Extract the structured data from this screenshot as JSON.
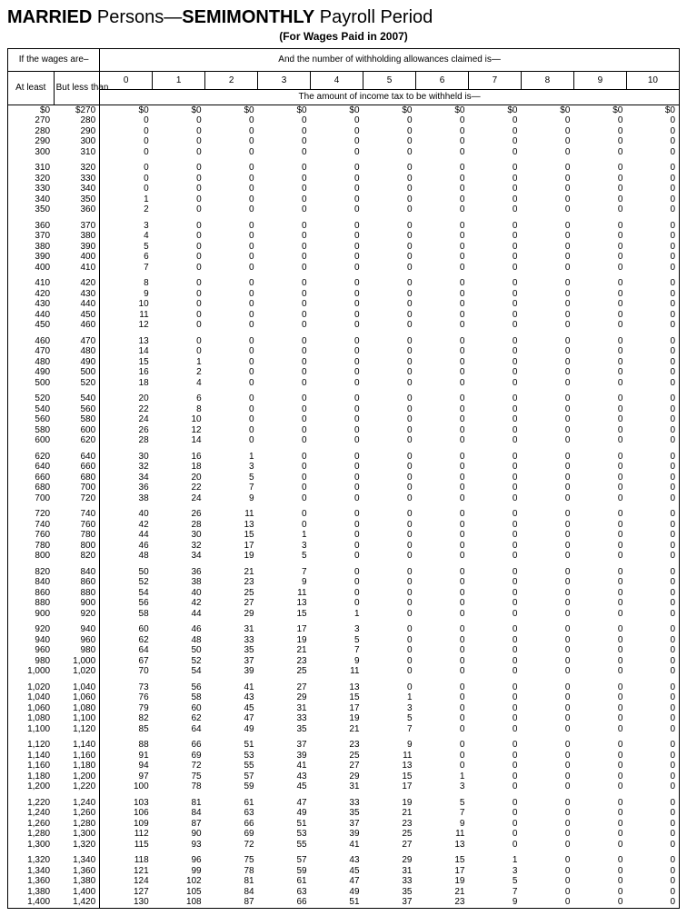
{
  "title_parts": {
    "p1": "MARRIED",
    "p2": " Persons—",
    "p3": "SEMIMONTHLY",
    "p4": " Payroll Period"
  },
  "subtitle": "(For Wages Paid in 2007)",
  "headers": {
    "wages_label": "If the wages are–",
    "allowances_label": "And the number of withholding allowances claimed is—",
    "at_least": "At least",
    "but_less": "But less than",
    "amount_label": "The amount of income tax to be withheld is—",
    "allowance_cols": [
      "0",
      "1",
      "2",
      "3",
      "4",
      "5",
      "6",
      "7",
      "8",
      "9",
      "10"
    ]
  },
  "groups": [
    [
      [
        "$0",
        "$270",
        "$0",
        "$0",
        "$0",
        "$0",
        "$0",
        "$0",
        "$0",
        "$0",
        "$0",
        "$0",
        "$0"
      ],
      [
        "270",
        "280",
        "0",
        "0",
        "0",
        "0",
        "0",
        "0",
        "0",
        "0",
        "0",
        "0",
        "0"
      ],
      [
        "280",
        "290",
        "0",
        "0",
        "0",
        "0",
        "0",
        "0",
        "0",
        "0",
        "0",
        "0",
        "0"
      ],
      [
        "290",
        "300",
        "0",
        "0",
        "0",
        "0",
        "0",
        "0",
        "0",
        "0",
        "0",
        "0",
        "0"
      ],
      [
        "300",
        "310",
        "0",
        "0",
        "0",
        "0",
        "0",
        "0",
        "0",
        "0",
        "0",
        "0",
        "0"
      ]
    ],
    [
      [
        "310",
        "320",
        "0",
        "0",
        "0",
        "0",
        "0",
        "0",
        "0",
        "0",
        "0",
        "0",
        "0"
      ],
      [
        "320",
        "330",
        "0",
        "0",
        "0",
        "0",
        "0",
        "0",
        "0",
        "0",
        "0",
        "0",
        "0"
      ],
      [
        "330",
        "340",
        "0",
        "0",
        "0",
        "0",
        "0",
        "0",
        "0",
        "0",
        "0",
        "0",
        "0"
      ],
      [
        "340",
        "350",
        "1",
        "0",
        "0",
        "0",
        "0",
        "0",
        "0",
        "0",
        "0",
        "0",
        "0"
      ],
      [
        "350",
        "360",
        "2",
        "0",
        "0",
        "0",
        "0",
        "0",
        "0",
        "0",
        "0",
        "0",
        "0"
      ]
    ],
    [
      [
        "360",
        "370",
        "3",
        "0",
        "0",
        "0",
        "0",
        "0",
        "0",
        "0",
        "0",
        "0",
        "0"
      ],
      [
        "370",
        "380",
        "4",
        "0",
        "0",
        "0",
        "0",
        "0",
        "0",
        "0",
        "0",
        "0",
        "0"
      ],
      [
        "380",
        "390",
        "5",
        "0",
        "0",
        "0",
        "0",
        "0",
        "0",
        "0",
        "0",
        "0",
        "0"
      ],
      [
        "390",
        "400",
        "6",
        "0",
        "0",
        "0",
        "0",
        "0",
        "0",
        "0",
        "0",
        "0",
        "0"
      ],
      [
        "400",
        "410",
        "7",
        "0",
        "0",
        "0",
        "0",
        "0",
        "0",
        "0",
        "0",
        "0",
        "0"
      ]
    ],
    [
      [
        "410",
        "420",
        "8",
        "0",
        "0",
        "0",
        "0",
        "0",
        "0",
        "0",
        "0",
        "0",
        "0"
      ],
      [
        "420",
        "430",
        "9",
        "0",
        "0",
        "0",
        "0",
        "0",
        "0",
        "0",
        "0",
        "0",
        "0"
      ],
      [
        "430",
        "440",
        "10",
        "0",
        "0",
        "0",
        "0",
        "0",
        "0",
        "0",
        "0",
        "0",
        "0"
      ],
      [
        "440",
        "450",
        "11",
        "0",
        "0",
        "0",
        "0",
        "0",
        "0",
        "0",
        "0",
        "0",
        "0"
      ],
      [
        "450",
        "460",
        "12",
        "0",
        "0",
        "0",
        "0",
        "0",
        "0",
        "0",
        "0",
        "0",
        "0"
      ]
    ],
    [
      [
        "460",
        "470",
        "13",
        "0",
        "0",
        "0",
        "0",
        "0",
        "0",
        "0",
        "0",
        "0",
        "0"
      ],
      [
        "470",
        "480",
        "14",
        "0",
        "0",
        "0",
        "0",
        "0",
        "0",
        "0",
        "0",
        "0",
        "0"
      ],
      [
        "480",
        "490",
        "15",
        "1",
        "0",
        "0",
        "0",
        "0",
        "0",
        "0",
        "0",
        "0",
        "0"
      ],
      [
        "490",
        "500",
        "16",
        "2",
        "0",
        "0",
        "0",
        "0",
        "0",
        "0",
        "0",
        "0",
        "0"
      ],
      [
        "500",
        "520",
        "18",
        "4",
        "0",
        "0",
        "0",
        "0",
        "0",
        "0",
        "0",
        "0",
        "0"
      ]
    ],
    [
      [
        "520",
        "540",
        "20",
        "6",
        "0",
        "0",
        "0",
        "0",
        "0",
        "0",
        "0",
        "0",
        "0"
      ],
      [
        "540",
        "560",
        "22",
        "8",
        "0",
        "0",
        "0",
        "0",
        "0",
        "0",
        "0",
        "0",
        "0"
      ],
      [
        "560",
        "580",
        "24",
        "10",
        "0",
        "0",
        "0",
        "0",
        "0",
        "0",
        "0",
        "0",
        "0"
      ],
      [
        "580",
        "600",
        "26",
        "12",
        "0",
        "0",
        "0",
        "0",
        "0",
        "0",
        "0",
        "0",
        "0"
      ],
      [
        "600",
        "620",
        "28",
        "14",
        "0",
        "0",
        "0",
        "0",
        "0",
        "0",
        "0",
        "0",
        "0"
      ]
    ],
    [
      [
        "620",
        "640",
        "30",
        "16",
        "1",
        "0",
        "0",
        "0",
        "0",
        "0",
        "0",
        "0",
        "0"
      ],
      [
        "640",
        "660",
        "32",
        "18",
        "3",
        "0",
        "0",
        "0",
        "0",
        "0",
        "0",
        "0",
        "0"
      ],
      [
        "660",
        "680",
        "34",
        "20",
        "5",
        "0",
        "0",
        "0",
        "0",
        "0",
        "0",
        "0",
        "0"
      ],
      [
        "680",
        "700",
        "36",
        "22",
        "7",
        "0",
        "0",
        "0",
        "0",
        "0",
        "0",
        "0",
        "0"
      ],
      [
        "700",
        "720",
        "38",
        "24",
        "9",
        "0",
        "0",
        "0",
        "0",
        "0",
        "0",
        "0",
        "0"
      ]
    ],
    [
      [
        "720",
        "740",
        "40",
        "26",
        "11",
        "0",
        "0",
        "0",
        "0",
        "0",
        "0",
        "0",
        "0"
      ],
      [
        "740",
        "760",
        "42",
        "28",
        "13",
        "0",
        "0",
        "0",
        "0",
        "0",
        "0",
        "0",
        "0"
      ],
      [
        "760",
        "780",
        "44",
        "30",
        "15",
        "1",
        "0",
        "0",
        "0",
        "0",
        "0",
        "0",
        "0"
      ],
      [
        "780",
        "800",
        "46",
        "32",
        "17",
        "3",
        "0",
        "0",
        "0",
        "0",
        "0",
        "0",
        "0"
      ],
      [
        "800",
        "820",
        "48",
        "34",
        "19",
        "5",
        "0",
        "0",
        "0",
        "0",
        "0",
        "0",
        "0"
      ]
    ],
    [
      [
        "820",
        "840",
        "50",
        "36",
        "21",
        "7",
        "0",
        "0",
        "0",
        "0",
        "0",
        "0",
        "0"
      ],
      [
        "840",
        "860",
        "52",
        "38",
        "23",
        "9",
        "0",
        "0",
        "0",
        "0",
        "0",
        "0",
        "0"
      ],
      [
        "860",
        "880",
        "54",
        "40",
        "25",
        "11",
        "0",
        "0",
        "0",
        "0",
        "0",
        "0",
        "0"
      ],
      [
        "880",
        "900",
        "56",
        "42",
        "27",
        "13",
        "0",
        "0",
        "0",
        "0",
        "0",
        "0",
        "0"
      ],
      [
        "900",
        "920",
        "58",
        "44",
        "29",
        "15",
        "1",
        "0",
        "0",
        "0",
        "0",
        "0",
        "0"
      ]
    ],
    [
      [
        "920",
        "940",
        "60",
        "46",
        "31",
        "17",
        "3",
        "0",
        "0",
        "0",
        "0",
        "0",
        "0"
      ],
      [
        "940",
        "960",
        "62",
        "48",
        "33",
        "19",
        "5",
        "0",
        "0",
        "0",
        "0",
        "0",
        "0"
      ],
      [
        "960",
        "980",
        "64",
        "50",
        "35",
        "21",
        "7",
        "0",
        "0",
        "0",
        "0",
        "0",
        "0"
      ],
      [
        "980",
        "1,000",
        "67",
        "52",
        "37",
        "23",
        "9",
        "0",
        "0",
        "0",
        "0",
        "0",
        "0"
      ],
      [
        "1,000",
        "1,020",
        "70",
        "54",
        "39",
        "25",
        "11",
        "0",
        "0",
        "0",
        "0",
        "0",
        "0"
      ]
    ],
    [
      [
        "1,020",
        "1,040",
        "73",
        "56",
        "41",
        "27",
        "13",
        "0",
        "0",
        "0",
        "0",
        "0",
        "0"
      ],
      [
        "1,040",
        "1,060",
        "76",
        "58",
        "43",
        "29",
        "15",
        "1",
        "0",
        "0",
        "0",
        "0",
        "0"
      ],
      [
        "1,060",
        "1,080",
        "79",
        "60",
        "45",
        "31",
        "17",
        "3",
        "0",
        "0",
        "0",
        "0",
        "0"
      ],
      [
        "1,080",
        "1,100",
        "82",
        "62",
        "47",
        "33",
        "19",
        "5",
        "0",
        "0",
        "0",
        "0",
        "0"
      ],
      [
        "1,100",
        "1,120",
        "85",
        "64",
        "49",
        "35",
        "21",
        "7",
        "0",
        "0",
        "0",
        "0",
        "0"
      ]
    ],
    [
      [
        "1,120",
        "1,140",
        "88",
        "66",
        "51",
        "37",
        "23",
        "9",
        "0",
        "0",
        "0",
        "0",
        "0"
      ],
      [
        "1,140",
        "1,160",
        "91",
        "69",
        "53",
        "39",
        "25",
        "11",
        "0",
        "0",
        "0",
        "0",
        "0"
      ],
      [
        "1,160",
        "1,180",
        "94",
        "72",
        "55",
        "41",
        "27",
        "13",
        "0",
        "0",
        "0",
        "0",
        "0"
      ],
      [
        "1,180",
        "1,200",
        "97",
        "75",
        "57",
        "43",
        "29",
        "15",
        "1",
        "0",
        "0",
        "0",
        "0"
      ],
      [
        "1,200",
        "1,220",
        "100",
        "78",
        "59",
        "45",
        "31",
        "17",
        "3",
        "0",
        "0",
        "0",
        "0"
      ]
    ],
    [
      [
        "1,220",
        "1,240",
        "103",
        "81",
        "61",
        "47",
        "33",
        "19",
        "5",
        "0",
        "0",
        "0",
        "0"
      ],
      [
        "1,240",
        "1,260",
        "106",
        "84",
        "63",
        "49",
        "35",
        "21",
        "7",
        "0",
        "0",
        "0",
        "0"
      ],
      [
        "1,260",
        "1,280",
        "109",
        "87",
        "66",
        "51",
        "37",
        "23",
        "9",
        "0",
        "0",
        "0",
        "0"
      ],
      [
        "1,280",
        "1,300",
        "112",
        "90",
        "69",
        "53",
        "39",
        "25",
        "11",
        "0",
        "0",
        "0",
        "0"
      ],
      [
        "1,300",
        "1,320",
        "115",
        "93",
        "72",
        "55",
        "41",
        "27",
        "13",
        "0",
        "0",
        "0",
        "0"
      ]
    ],
    [
      [
        "1,320",
        "1,340",
        "118",
        "96",
        "75",
        "57",
        "43",
        "29",
        "15",
        "1",
        "0",
        "0",
        "0"
      ],
      [
        "1,340",
        "1,360",
        "121",
        "99",
        "78",
        "59",
        "45",
        "31",
        "17",
        "3",
        "0",
        "0",
        "0"
      ],
      [
        "1,360",
        "1,380",
        "124",
        "102",
        "81",
        "61",
        "47",
        "33",
        "19",
        "5",
        "0",
        "0",
        "0"
      ],
      [
        "1,380",
        "1,400",
        "127",
        "105",
        "84",
        "63",
        "49",
        "35",
        "21",
        "7",
        "0",
        "0",
        "0"
      ],
      [
        "1,400",
        "1,420",
        "130",
        "108",
        "87",
        "66",
        "51",
        "37",
        "23",
        "9",
        "0",
        "0",
        "0"
      ]
    ]
  ],
  "style": {
    "font_family": "Arial, Helvetica, sans-serif",
    "border_color": "#000000",
    "background": "#ffffff",
    "text_color": "#000000"
  }
}
